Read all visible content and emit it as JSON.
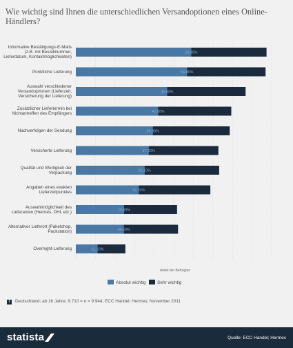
{
  "title": "Wie wichtig sind Ihnen die unterschiedlichen Versandoptionen eines Online-Händlers?",
  "axis_label": "Anteil der Befragten",
  "footnote": "Deutschland; ab 16 Jahre; 9.710 = n = 9.944; ECC Handel; Hermes; November 2011",
  "source": "Quelle: ECC Handel; Hermes",
  "brand": "statista",
  "colors": {
    "absolut": "#4a78a5",
    "sehr": "#1b2a3c",
    "background": "#f1f1f1",
    "footer": "#1a2b3c"
  },
  "chart_data": {
    "type": "bar",
    "orientation": "horizontal",
    "stacked": true,
    "categories": [
      "Informative Bestätigungs-E-Mails (z.B. mit Bestellnummer, Lieferdatum, Kontaktmöglichkeiten)",
      "Pünktliche Lieferung",
      "Auswahl verschiedener Versandoptionen (Lieferzeit, Versicherung der Lieferung)",
      "Zusätzlicher Liefertermin bei Nichtantreffen des Empfängers",
      "Nachverfolgen der Sendung",
      "Versicherte Lieferung",
      "Qualität und Wertigkeit der Verpackung",
      "Angaben eines exakten Lieferzeitpunktes",
      "Auswahlmöglichkeit des Lieferanten (Hermes, DHL etc.)",
      "Alternativer Lieferort (Paketshop, Packstation)",
      "Overnight-Lieferung"
    ],
    "series": [
      {
        "name": "Absolut wichtig",
        "values": [
          58.9,
          56.8,
          46.6,
          42.0,
          39.3,
          37.2,
          35.1,
          32.1,
          24.6,
          24.5,
          11.1
        ],
        "labels": [
          "58,90%",
          "56,80%",
          "46,60%",
          "42,00%",
          "39,30%",
          "37,20%",
          "35,10%",
          "32,10%",
          "24,60%",
          "24,50%",
          "11,10%"
        ]
      },
      {
        "name": "Sehr wichtig",
        "values": [
          38.5,
          40.1,
          40.1,
          37.4,
          39.3,
          35.6,
          38.1,
          36.6,
          27.1,
          27.7,
          14.2
        ]
      }
    ],
    "xlim": [
      0,
      100
    ],
    "legend_position": "bottom",
    "grid": true
  }
}
